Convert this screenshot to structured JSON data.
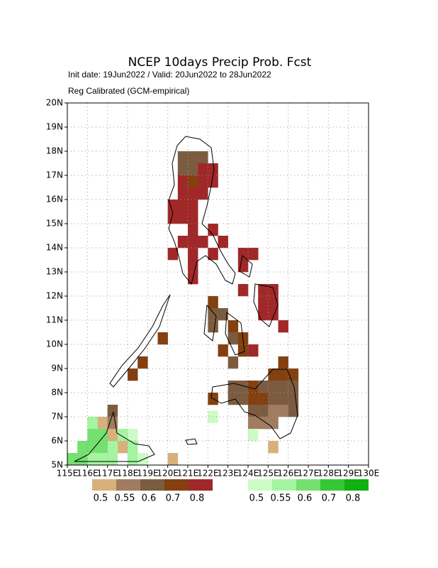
{
  "chart_data": {
    "type": "gridmap",
    "title": "NCEP 10days Precip Prob. Fcst",
    "subtitle": "Init date: 19Jun2022 / Valid: 20Jun2022 to 28Jun2022",
    "note": "Reg Calibrated (GCM-empirical)",
    "xlim": [
      115,
      130
    ],
    "ylim": [
      5,
      20
    ],
    "xticks": [
      {
        "value": 115,
        "label": "115E"
      },
      {
        "value": 116,
        "label": "116E"
      },
      {
        "value": 117,
        "label": "117E"
      },
      {
        "value": 118,
        "label": "118E"
      },
      {
        "value": 119,
        "label": "119E"
      },
      {
        "value": 120,
        "label": "120E"
      },
      {
        "value": 121,
        "label": "121E"
      },
      {
        "value": 122,
        "label": "122E"
      },
      {
        "value": 123,
        "label": "123E"
      },
      {
        "value": 124,
        "label": "124E"
      },
      {
        "value": 125,
        "label": "125E"
      },
      {
        "value": 126,
        "label": "126E"
      },
      {
        "value": 127,
        "label": "127E"
      },
      {
        "value": 128,
        "label": "128E"
      },
      {
        "value": 129,
        "label": "129E"
      },
      {
        "value": 130,
        "label": "130E"
      }
    ],
    "yticks": [
      {
        "value": 5,
        "label": "5N"
      },
      {
        "value": 6,
        "label": "6N"
      },
      {
        "value": 7,
        "label": "7N"
      },
      {
        "value": 8,
        "label": "8N"
      },
      {
        "value": 9,
        "label": "9N"
      },
      {
        "value": 10,
        "label": "10N"
      },
      {
        "value": 11,
        "label": "11N"
      },
      {
        "value": 12,
        "label": "12N"
      },
      {
        "value": 13,
        "label": "13N"
      },
      {
        "value": 14,
        "label": "14N"
      },
      {
        "value": 15,
        "label": "15N"
      },
      {
        "value": 16,
        "label": "16N"
      },
      {
        "value": 17,
        "label": "17N"
      },
      {
        "value": 18,
        "label": "18N"
      },
      {
        "value": 19,
        "label": "19N"
      },
      {
        "value": 20,
        "label": "20N"
      }
    ],
    "grid": true,
    "dry_scale": {
      "labels": [
        0.5,
        0.55,
        0.6,
        0.7,
        0.8
      ],
      "colors": [
        "#d8b07c",
        "#a07c60",
        "#7c5c40",
        "#844010",
        "#a02828"
      ]
    },
    "wet_scale": {
      "labels": [
        0.5,
        0.55,
        0.6,
        0.7,
        0.8
      ],
      "colors": [
        "#ccfcc4",
        "#a4f4a0",
        "#74e070",
        "#34c834",
        "#10b010"
      ]
    },
    "dry_cells": [
      [
        120.5,
        17.5,
        0.6
      ],
      [
        121,
        17.5,
        0.6
      ],
      [
        121.5,
        17.5,
        0.6
      ],
      [
        120.5,
        17,
        0.6
      ],
      [
        121,
        17,
        0.6
      ],
      [
        121.5,
        17,
        0.8
      ],
      [
        122,
        17,
        0.8
      ],
      [
        120.5,
        16.5,
        0.8
      ],
      [
        121,
        16.5,
        0.7
      ],
      [
        121.5,
        16.5,
        0.8
      ],
      [
        122,
        16.5,
        0.8
      ],
      [
        120.5,
        16,
        0.8
      ],
      [
        121,
        16,
        0.8
      ],
      [
        121.5,
        16,
        0.8
      ],
      [
        120,
        15.5,
        0.8
      ],
      [
        120.5,
        15.5,
        0.8
      ],
      [
        121,
        15.5,
        0.8
      ],
      [
        120,
        15,
        0.8
      ],
      [
        120.5,
        15,
        0.8
      ],
      [
        121,
        15,
        0.8
      ],
      [
        121,
        14.5,
        0.8
      ],
      [
        122,
        14.5,
        0.8
      ],
      [
        120.5,
        14,
        0.8
      ],
      [
        121,
        14,
        0.8
      ],
      [
        121.5,
        14,
        0.8
      ],
      [
        122.5,
        14,
        0.8
      ],
      [
        120,
        13.5,
        0.8
      ],
      [
        121,
        13.5,
        0.8
      ],
      [
        122,
        13.5,
        0.8
      ],
      [
        123.5,
        13.5,
        0.8
      ],
      [
        124,
        13.5,
        0.8
      ],
      [
        121,
        13,
        0.8
      ],
      [
        123.5,
        13,
        0.8
      ],
      [
        121,
        12.5,
        0.8
      ],
      [
        123.5,
        12,
        0.8
      ],
      [
        124.5,
        12,
        0.8
      ],
      [
        125,
        12,
        0.8
      ],
      [
        122,
        11.5,
        0.7
      ],
      [
        124.5,
        11.5,
        0.8
      ],
      [
        125,
        11.5,
        0.8
      ],
      [
        122,
        11,
        0.6
      ],
      [
        122.5,
        11,
        0.6
      ],
      [
        124.5,
        11,
        0.8
      ],
      [
        125,
        11,
        0.8
      ],
      [
        122,
        10.5,
        0.6
      ],
      [
        123,
        10.5,
        0.7
      ],
      [
        125.5,
        10.5,
        0.8
      ],
      [
        119.5,
        10,
        0.7
      ],
      [
        123,
        10,
        0.6
      ],
      [
        123.5,
        10,
        0.7
      ],
      [
        122.5,
        9.5,
        0.7
      ],
      [
        123.5,
        9.5,
        0.7
      ],
      [
        124,
        9.5,
        0.8
      ],
      [
        118.5,
        9,
        0.7
      ],
      [
        123,
        9,
        0.6
      ],
      [
        125.5,
        9,
        0.7
      ],
      [
        118,
        8.5,
        0.7
      ],
      [
        125,
        8.5,
        0.7
      ],
      [
        125.5,
        8.5,
        0.7
      ],
      [
        126,
        8.5,
        0.7
      ],
      [
        123,
        8,
        0.6
      ],
      [
        123.5,
        8,
        0.6
      ],
      [
        124,
        8,
        0.7
      ],
      [
        124.5,
        8,
        0.6
      ],
      [
        125,
        8,
        0.6
      ],
      [
        125.5,
        8,
        0.6
      ],
      [
        126,
        8,
        0.6
      ],
      [
        122,
        7.5,
        0.7
      ],
      [
        123,
        7.5,
        0.6
      ],
      [
        123.5,
        7.5,
        0.6
      ],
      [
        124,
        7.5,
        0.7
      ],
      [
        124.5,
        7.5,
        0.7
      ],
      [
        125,
        7.5,
        0.6
      ],
      [
        125.5,
        7.5,
        0.6
      ],
      [
        126,
        7.5,
        0.6
      ],
      [
        117,
        7,
        0.6
      ],
      [
        124,
        7,
        0.6
      ],
      [
        124.5,
        7,
        0.6
      ],
      [
        125,
        7,
        0.55
      ],
      [
        125.5,
        7,
        0.55
      ],
      [
        126,
        7,
        0.6
      ],
      [
        116.5,
        6.5,
        0.5
      ],
      [
        117,
        6.5,
        0.55
      ],
      [
        124,
        6.5,
        0.55
      ],
      [
        124.5,
        6.5,
        0.55
      ],
      [
        125,
        6.5,
        0.55
      ],
      [
        117,
        6,
        0.5
      ],
      [
        117.5,
        5.5,
        0.5
      ],
      [
        125,
        5.5,
        0.5
      ],
      [
        120,
        5,
        0.5
      ]
    ],
    "wet_cells": [
      [
        122,
        6.75,
        0.5
      ],
      [
        124,
        6,
        0.5
      ],
      [
        116,
        6.5,
        0.55
      ],
      [
        116,
        6,
        0.6
      ],
      [
        116.5,
        6,
        0.6
      ],
      [
        117.5,
        6,
        0.55
      ],
      [
        118,
        6,
        0.5
      ],
      [
        115.5,
        5.5,
        0.6
      ],
      [
        116,
        5.5,
        0.6
      ],
      [
        116.5,
        5.5,
        0.6
      ],
      [
        117,
        5.5,
        0.55
      ],
      [
        118,
        5.5,
        0.55
      ],
      [
        115,
        5,
        0.6
      ],
      [
        115.5,
        5,
        0.6
      ],
      [
        116,
        5,
        0.55
      ],
      [
        116.5,
        5,
        0.55
      ],
      [
        117,
        5,
        0.55
      ],
      [
        118,
        5,
        0.55
      ],
      [
        118.5,
        5,
        0.5
      ]
    ]
  }
}
